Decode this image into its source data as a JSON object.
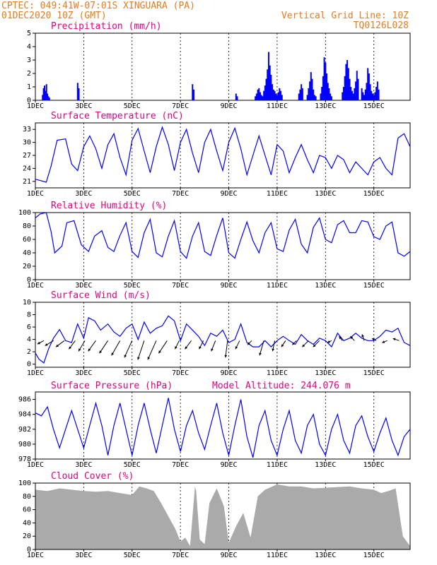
{
  "header": {
    "line1": "CPTEC:   049:41W-07:01S  XINGUARA (PA)",
    "line2": "01DEC2020 10Z (GMT)",
    "grid_note": "Vertical Grid Line: 10Z",
    "code": "TQ0126L028"
  },
  "colors": {
    "header": "#e87b1c",
    "title": "#e6007e",
    "series": "#0000ff",
    "cloud": "#aaaaaa",
    "wind_arrow": "#000000"
  },
  "chart_data": [
    {
      "id": "precip",
      "type": "bar",
      "title": "Precipitation (mm/h)",
      "ylim": [
        0,
        5
      ],
      "yticks": [
        0,
        1,
        2,
        3,
        4,
        5
      ],
      "xlim": [
        1,
        16.5
      ],
      "xticks": [
        "1DEC",
        "3DEC",
        "5DEC",
        "7DEC",
        "9DEC",
        "11DEC",
        "13DEC",
        "15DEC"
      ],
      "x": [
        1.3,
        1.34,
        1.38,
        1.42,
        1.46,
        1.5,
        1.54,
        1.58,
        2.75,
        2.8,
        7.5,
        7.55,
        9.3,
        9.35,
        10.1,
        10.15,
        10.2,
        10.25,
        10.3,
        10.35,
        10.4,
        10.45,
        10.5,
        10.55,
        10.6,
        10.65,
        10.7,
        10.75,
        10.8,
        10.85,
        10.9,
        10.95,
        11,
        11.05,
        11.1,
        11.15,
        11.2,
        11.9,
        11.95,
        12,
        12.05,
        12.25,
        12.3,
        12.35,
        12.4,
        12.45,
        12.5,
        12.55,
        12.6,
        12.8,
        12.85,
        12.9,
        12.95,
        13,
        13.05,
        13.1,
        13.15,
        13.2,
        13.25,
        13.7,
        13.75,
        13.8,
        13.85,
        13.9,
        13.95,
        14,
        14.05,
        14.1,
        14.15,
        14.2,
        14.25,
        14.3,
        14.35,
        14.5,
        14.55,
        14.6,
        14.65,
        14.7,
        14.75,
        14.8,
        14.85,
        14.9,
        14.95,
        15,
        15.05,
        15.1,
        15.15,
        15.2
      ],
      "values": [
        0.4,
        0.9,
        1.1,
        0.7,
        1.2,
        0.5,
        0.3,
        0.2,
        1.3,
        0.9,
        1.2,
        0.8,
        0.5,
        0.3,
        0.3,
        0.5,
        0.8,
        0.9,
        0.6,
        0.4,
        0.3,
        0.7,
        1.1,
        1.6,
        2.3,
        3.6,
        2.6,
        1.9,
        1.2,
        0.8,
        0.7,
        0.5,
        0.4,
        0.6,
        0.9,
        0.7,
        0.4,
        0.5,
        0.8,
        1.2,
        0.9,
        0.4,
        0.9,
        1.4,
        2.1,
        1.6,
        0.8,
        0.4,
        0.3,
        0.5,
        1.0,
        1.8,
        3.2,
        2.8,
        2.0,
        1.3,
        0.9,
        0.5,
        0.3,
        0.6,
        1.0,
        1.8,
        2.7,
        3.0,
        2.4,
        1.6,
        1.0,
        0.7,
        0.5,
        0.9,
        1.4,
        2.2,
        1.6,
        0.9,
        0.6,
        0.4,
        0.8,
        1.3,
        2.4,
        2.0,
        1.2,
        0.7,
        0.5,
        0.4,
        0.6,
        1.0,
        1.4,
        0.8
      ]
    },
    {
      "id": "temp",
      "type": "line",
      "title": "Surface Temperature (nC)",
      "ylim": [
        19.5,
        34.5
      ],
      "yticks": [
        21,
        24,
        27,
        30,
        33
      ],
      "xlim": [
        1,
        16.5
      ],
      "xticks": [
        "1DEC",
        "3DEC",
        "5DEC",
        "7DEC",
        "9DEC",
        "11DEC",
        "13DEC",
        "15DEC"
      ],
      "x": [
        1.0,
        1.2,
        1.45,
        1.65,
        1.9,
        2.25,
        2.5,
        2.75,
        3.0,
        3.25,
        3.5,
        3.75,
        4.0,
        4.25,
        4.5,
        4.75,
        5.0,
        5.25,
        5.5,
        5.75,
        6.0,
        6.25,
        6.5,
        6.75,
        7.0,
        7.25,
        7.5,
        7.75,
        8.0,
        8.25,
        8.5,
        8.75,
        9.0,
        9.25,
        9.5,
        9.75,
        10.0,
        10.25,
        10.5,
        10.75,
        11.0,
        11.25,
        11.5,
        11.75,
        12.0,
        12.25,
        12.5,
        12.75,
        13.0,
        13.25,
        13.5,
        13.75,
        14.0,
        14.25,
        14.5,
        14.75,
        15.0,
        15.25,
        15.5,
        15.75,
        16.0,
        16.25,
        16.5
      ],
      "values": [
        21.5,
        21.2,
        20.8,
        24.5,
        30.5,
        30.8,
        25.0,
        23.5,
        29.0,
        31.5,
        28.5,
        24.0,
        29.5,
        32.0,
        26.5,
        22.5,
        30.5,
        33.2,
        28.0,
        23.0,
        29.0,
        33.5,
        29.5,
        23.5,
        30.0,
        33.0,
        27.5,
        23.0,
        30.0,
        33.0,
        28.0,
        23.5,
        30.0,
        33.3,
        28.5,
        22.5,
        27.0,
        31.5,
        27.0,
        22.5,
        29.5,
        28.0,
        23.0,
        26.5,
        29.5,
        26.0,
        23.0,
        27.0,
        26.5,
        24.0,
        27.0,
        26.0,
        23.0,
        25.5,
        24.0,
        22.5,
        25.5,
        26.5,
        24.0,
        22.5,
        31.0,
        32.0,
        29.0
      ]
    },
    {
      "id": "rh",
      "type": "line",
      "title": "Relative Humidity (%)",
      "ylim": [
        0,
        100
      ],
      "yticks": [
        0,
        20,
        40,
        60,
        80,
        100
      ],
      "xlim": [
        1,
        16.5
      ],
      "xticks": [
        "1DEC",
        "3DEC",
        "5DEC",
        "7DEC",
        "9DEC",
        "11DEC",
        "13DEC",
        "15DEC"
      ],
      "x": [
        1.0,
        1.2,
        1.45,
        1.65,
        1.8,
        2.1,
        2.3,
        2.6,
        2.9,
        3.2,
        3.45,
        3.75,
        4.0,
        4.25,
        4.5,
        4.75,
        5.0,
        5.25,
        5.5,
        5.75,
        6.0,
        6.25,
        6.5,
        6.75,
        7.0,
        7.25,
        7.5,
        7.75,
        8.0,
        8.25,
        8.5,
        8.75,
        9.0,
        9.25,
        9.5,
        9.75,
        10.0,
        10.25,
        10.5,
        10.75,
        11.0,
        11.25,
        11.5,
        11.75,
        12.0,
        12.25,
        12.5,
        12.75,
        13.0,
        13.25,
        13.5,
        13.75,
        14.0,
        14.25,
        14.5,
        14.75,
        15.0,
        15.25,
        15.5,
        15.75,
        16.0,
        16.25,
        16.5
      ],
      "values": [
        92,
        98,
        100,
        72,
        40,
        50,
        85,
        88,
        52,
        42,
        65,
        73,
        48,
        42,
        66,
        85,
        42,
        33,
        70,
        90,
        40,
        34,
        65,
        88,
        42,
        32,
        65,
        85,
        42,
        36,
        66,
        92,
        40,
        32,
        60,
        86,
        58,
        40,
        70,
        85,
        46,
        42,
        74,
        90,
        53,
        40,
        78,
        92,
        60,
        55,
        82,
        88,
        70,
        70,
        88,
        86,
        64,
        60,
        80,
        86,
        40,
        35,
        42
      ]
    },
    {
      "id": "wind",
      "type": "line",
      "title": "Surface Wind (m/s)",
      "ylim": [
        -0.5,
        10
      ],
      "yticks": [
        0,
        2,
        4,
        6,
        8,
        10
      ],
      "xlim": [
        1,
        16.5
      ],
      "xticks": [
        "1DEC",
        "3DEC",
        "5DEC",
        "7DEC",
        "9DEC",
        "11DEC",
        "13DEC",
        "15DEC"
      ],
      "x": [
        1.0,
        1.15,
        1.35,
        1.55,
        1.75,
        2.0,
        2.25,
        2.5,
        2.75,
        3.0,
        3.2,
        3.45,
        3.7,
        4.0,
        4.25,
        4.5,
        4.75,
        5.0,
        5.25,
        5.5,
        5.75,
        6.0,
        6.25,
        6.5,
        6.75,
        7.0,
        7.25,
        7.5,
        7.75,
        8.0,
        8.25,
        8.5,
        8.75,
        9.0,
        9.25,
        9.5,
        9.75,
        10.0,
        10.25,
        10.5,
        10.75,
        11.0,
        11.25,
        11.5,
        11.75,
        12.0,
        12.25,
        12.5,
        12.75,
        13.0,
        13.25,
        13.5,
        13.75,
        14.0,
        14.25,
        14.5,
        14.75,
        15.0,
        15.25,
        15.5,
        15.75,
        16.0,
        16.25,
        16.5
      ],
      "values": [
        1.8,
        0.8,
        0.2,
        2.5,
        4.2,
        5.6,
        3.8,
        3.5,
        6.5,
        4.2,
        7.5,
        7.0,
        5.5,
        6.5,
        5.2,
        4.5,
        5.8,
        6.5,
        4.0,
        6.8,
        5.0,
        5.8,
        6.2,
        7.8,
        7.0,
        3.8,
        6.5,
        5.5,
        4.5,
        3.0,
        5.0,
        4.5,
        5.5,
        3.5,
        4.0,
        6.5,
        3.5,
        2.8,
        2.8,
        3.8,
        2.8,
        3.8,
        4.5,
        3.8,
        3.2,
        4.8,
        3.8,
        3.2,
        4.2,
        3.8,
        2.8,
        5.0,
        3.8,
        4.2,
        5.0,
        4.2,
        3.8,
        3.8,
        4.5,
        5.5,
        5.2,
        5.8,
        3.5,
        3.0
      ]
    },
    {
      "id": "pressure",
      "type": "line",
      "title": "Surface Pressure (hPa)",
      "subtitle": "Model Altitude: 244.076 m",
      "ylim": [
        978,
        987
      ],
      "yticks": [
        978,
        980,
        982,
        984,
        986
      ],
      "xlim": [
        1,
        16.5
      ],
      "xticks": [
        "1DEC",
        "3DEC",
        "5DEC",
        "7DEC",
        "9DEC",
        "11DEC",
        "13DEC",
        "15DEC"
      ],
      "x": [
        1.0,
        1.25,
        1.5,
        1.75,
        2.0,
        2.25,
        2.5,
        2.75,
        3.0,
        3.25,
        3.5,
        3.75,
        4.0,
        4.25,
        4.5,
        4.75,
        5.0,
        5.25,
        5.5,
        5.75,
        6.0,
        6.25,
        6.5,
        6.75,
        7.0,
        7.25,
        7.5,
        7.75,
        8.0,
        8.25,
        8.5,
        8.75,
        9.0,
        9.25,
        9.5,
        9.75,
        10.0,
        10.25,
        10.5,
        10.75,
        11.0,
        11.25,
        11.5,
        11.75,
        12.0,
        12.25,
        12.5,
        12.75,
        13.0,
        13.25,
        13.5,
        13.75,
        14.0,
        14.25,
        14.5,
        14.75,
        15.0,
        15.25,
        15.5,
        15.75,
        16.0,
        16.25,
        16.5
      ],
      "values": [
        984.2,
        983.8,
        985.0,
        982.0,
        979.5,
        982.0,
        984.5,
        982.0,
        979.5,
        982.5,
        985.5,
        982.5,
        978.5,
        982.5,
        985.5,
        982.0,
        978.5,
        982.5,
        985.5,
        982.0,
        978.8,
        982.5,
        986.2,
        982.0,
        979.0,
        982.5,
        984.5,
        981.5,
        979.3,
        982.5,
        985.5,
        981.5,
        978.5,
        982.5,
        986.0,
        981.0,
        978.2,
        982.5,
        984.5,
        980.5,
        978.5,
        982.0,
        984.5,
        980.5,
        978.8,
        982.5,
        984.0,
        980.0,
        978.5,
        982.0,
        984.0,
        980.5,
        978.8,
        982.5,
        983.8,
        981.0,
        979.0,
        981.5,
        983.5,
        980.5,
        978.5,
        981.0,
        982.0
      ]
    },
    {
      "id": "cloud",
      "type": "area",
      "title": "Cloud Cover (%)",
      "ylim": [
        0,
        100
      ],
      "yticks": [
        0,
        20,
        40,
        60,
        80,
        100
      ],
      "xlim": [
        1,
        16.5
      ],
      "xticks": [
        "1DEC",
        "3DEC",
        "5DEC",
        "7DEC",
        "9DEC",
        "11DEC",
        "13DEC",
        "15DEC"
      ],
      "x": [
        1.0,
        1.5,
        2.0,
        2.5,
        3.0,
        3.5,
        4.0,
        4.5,
        5.0,
        5.3,
        5.6,
        5.9,
        6.2,
        6.5,
        6.8,
        7.0,
        7.2,
        7.4,
        7.6,
        7.65,
        7.8,
        8.0,
        8.2,
        8.5,
        8.8,
        9.0,
        9.3,
        9.6,
        9.9,
        10.2,
        10.5,
        11.0,
        11.5,
        12.0,
        12.5,
        13.0,
        13.5,
        14.0,
        14.5,
        15.0,
        15.3,
        15.6,
        15.9,
        16.2,
        16.5
      ],
      "values": [
        90,
        88,
        92,
        90,
        88,
        87,
        88,
        85,
        82,
        95,
        92,
        88,
        70,
        50,
        30,
        12,
        18,
        5,
        95,
        88,
        15,
        8,
        70,
        92,
        65,
        10,
        35,
        55,
        18,
        80,
        90,
        98,
        95,
        95,
        92,
        93,
        94,
        95,
        92,
        90,
        85,
        88,
        92,
        20,
        5
      ]
    }
  ],
  "wind_vectors": {
    "x": [
      1.35,
      1.75,
      2.2,
      2.65,
      3.05,
      3.5,
      4.0,
      4.5,
      5.0,
      5.5,
      6.0,
      6.45,
      6.95,
      7.45,
      7.95,
      8.45,
      8.95,
      9.45,
      9.95,
      10.45,
      10.9,
      11.35,
      11.8,
      12.3,
      12.75,
      13.25,
      13.7,
      14.2,
      14.6,
      15.1,
      15.55,
      16.05
    ],
    "u": [
      -1.5,
      -2.0,
      -2.0,
      -1.5,
      -1.5,
      -1.8,
      -2.0,
      -2.0,
      -1.8,
      -1.5,
      -2.0,
      -2.0,
      -1.0,
      -1.5,
      -1.0,
      -1.0,
      -0.5,
      -1.0,
      -1.0,
      -1.0,
      -0.5,
      -1.0,
      -1.0,
      -1.5,
      -1.5,
      -1.0,
      -0.8,
      -1.0,
      -0.5,
      -1.0,
      -1.2,
      -1.5
    ],
    "v": [
      -0.8,
      -1.2,
      -1.5,
      -2.0,
      -2.5,
      -2.5,
      -3.0,
      -3.5,
      -4.0,
      -4.5,
      -4.5,
      -3.0,
      -2.0,
      -2.0,
      -2.0,
      -2.5,
      -4.0,
      -2.0,
      -1.0,
      -3.5,
      -2.5,
      -1.5,
      -1.0,
      -1.5,
      -1.5,
      -0.5,
      1.0,
      1.0,
      1.5,
      0.5,
      -0.5,
      0.5
    ]
  }
}
